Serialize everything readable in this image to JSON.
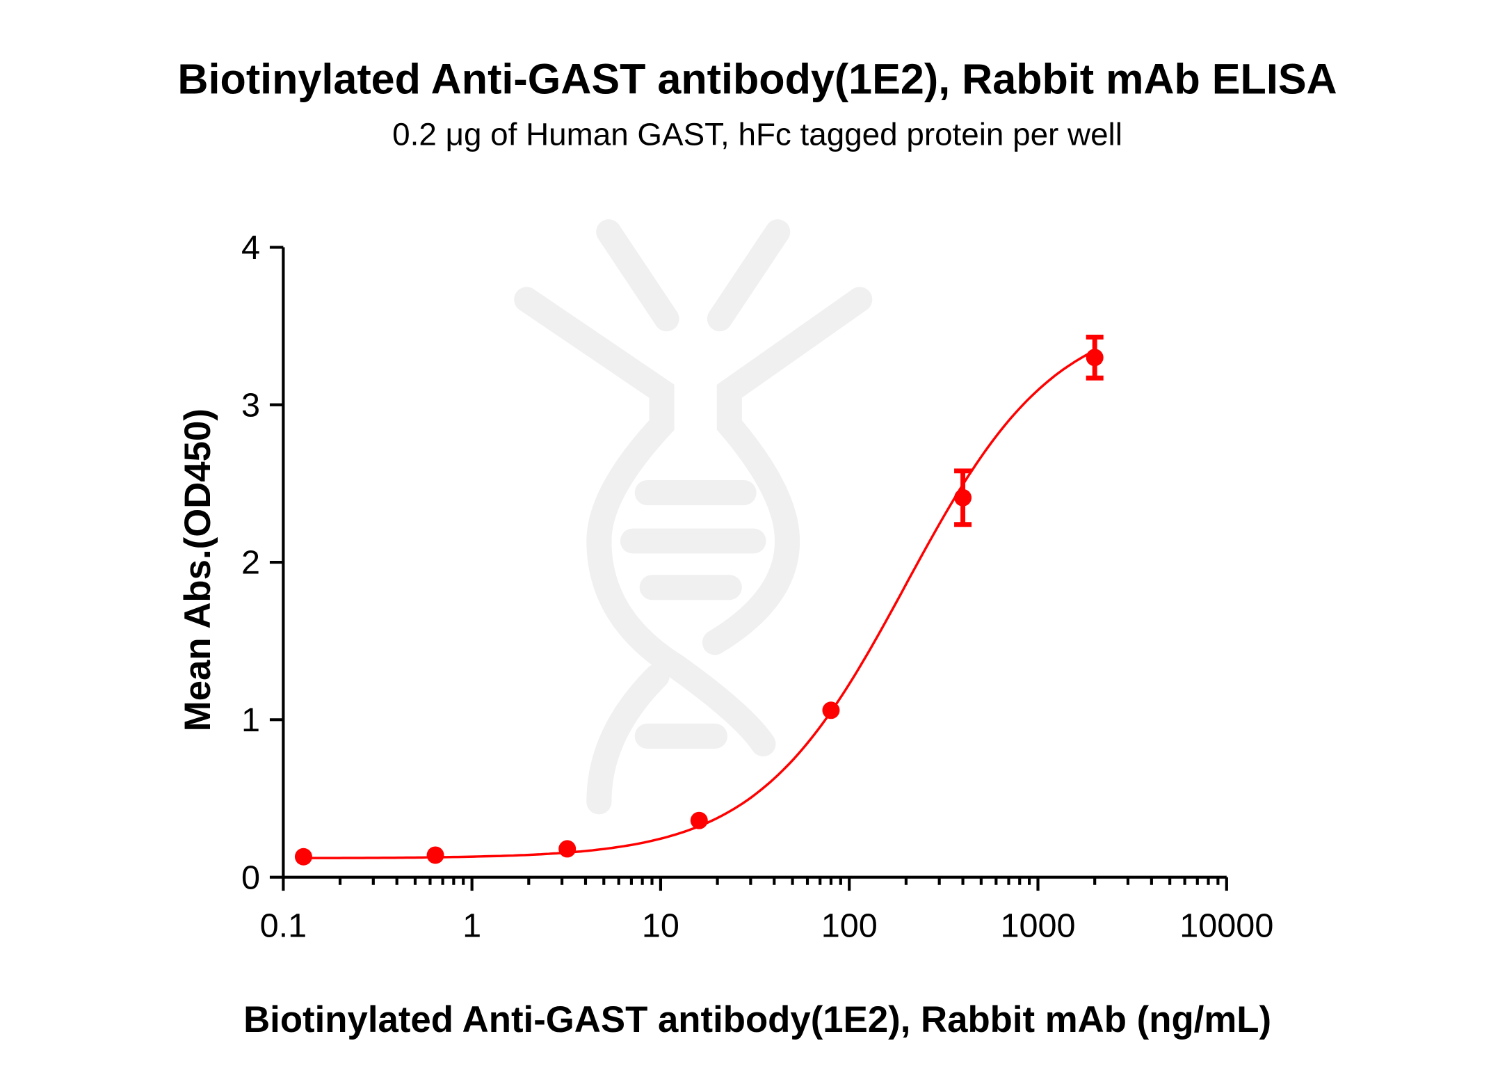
{
  "chart_data": {
    "type": "scatter",
    "title": "Biotinylated Anti-GAST antibody(1E2), Rabbit mAb ELISA",
    "subtitle": "0.2 μg of Human GAST, hFc tagged protein per well",
    "xlabel": "Biotinylated Anti-GAST antibody(1E2), Rabbit mAb (ng/mL)",
    "ylabel": "Mean Abs.(OD450)",
    "x_scale": "log",
    "xlim": [
      0.1,
      10000
    ],
    "ylim": [
      0,
      4
    ],
    "x_ticks": [
      "0.1",
      "1",
      "10",
      "100",
      "1000",
      "10000"
    ],
    "y_ticks": [
      "0",
      "1",
      "2",
      "3",
      "4"
    ],
    "grid": false,
    "legend": "none",
    "series": [
      {
        "color": "#ff0000",
        "x": [
          0.128,
          0.64,
          3.2,
          16,
          80,
          400,
          2000
        ],
        "y": [
          0.13,
          0.14,
          0.18,
          0.36,
          1.06,
          2.41,
          3.3
        ],
        "error": [
          0.01,
          0.01,
          0.01,
          0.02,
          0.02,
          0.17,
          0.13
        ],
        "fit": "4PL curve"
      }
    ]
  }
}
